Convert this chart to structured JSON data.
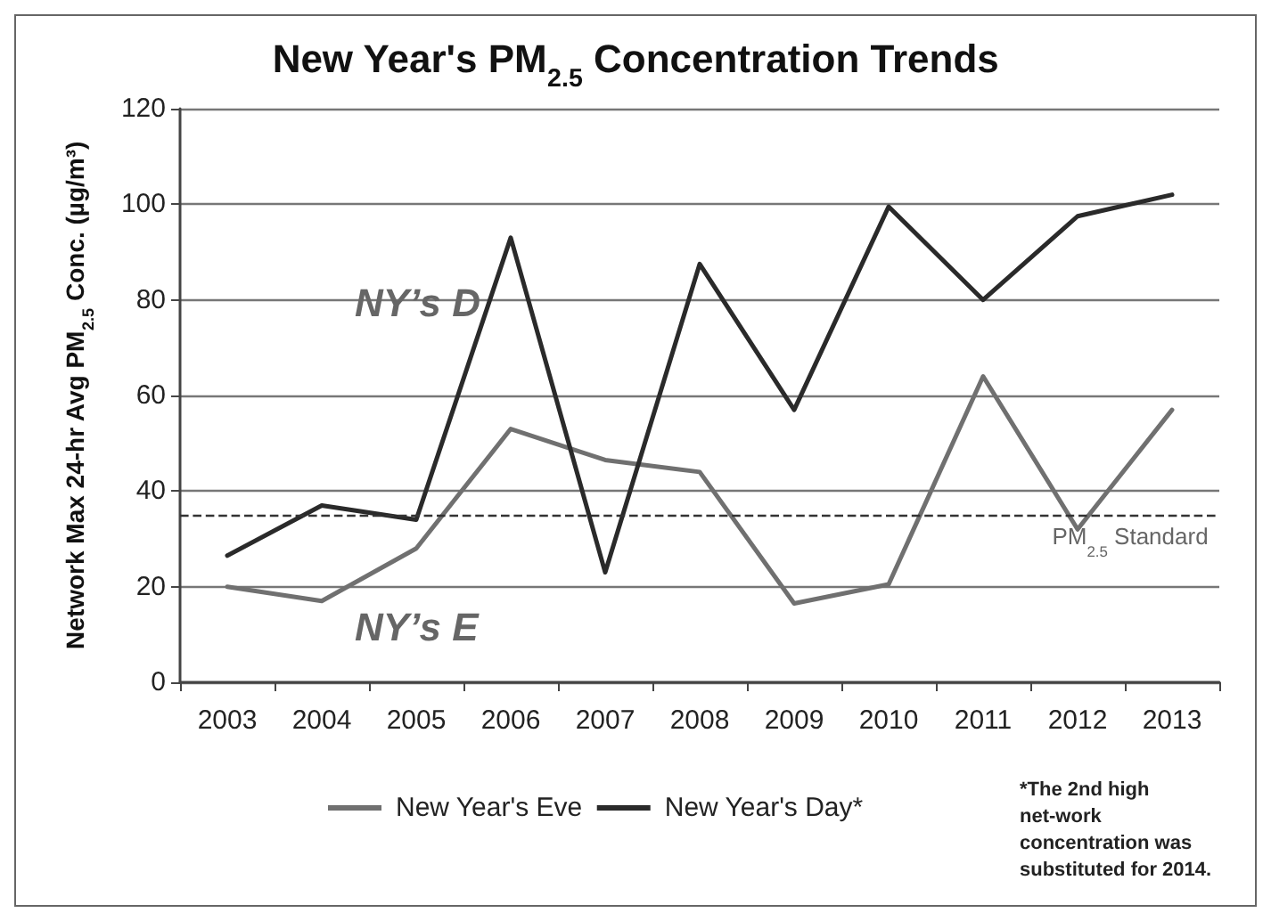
{
  "chart_data": {
    "type": "line",
    "title": "New Year's PM$_{2.5}$ Concentration Trends",
    "ylabel": "Network Max 24-hr Avg PM$_{2.5}$ Conc. (µg/m³)",
    "categories": [
      "2003",
      "2004",
      "2005",
      "2006",
      "2007",
      "2008",
      "2009",
      "2010",
      "2011",
      "2012",
      "2013"
    ],
    "series": [
      {
        "name": "New Year's Eve",
        "color": "#707070",
        "values": [
          20,
          17,
          28,
          53,
          46.5,
          44,
          16.5,
          20.5,
          64,
          32,
          57
        ]
      },
      {
        "name": "New Year's Day*",
        "color": "#2a2a2a",
        "values": [
          26.5,
          37,
          34,
          93,
          23,
          87.5,
          57,
          99.5,
          80,
          97.5,
          102
        ]
      }
    ],
    "ylim": [
      0,
      120
    ],
    "yticks": [
      0,
      20,
      40,
      60,
      80,
      100,
      120
    ],
    "grid": "y",
    "legend": "bottom",
    "marker": "none",
    "line_style": "solid",
    "ref_lines": [
      {
        "axis": "y",
        "value": 35,
        "label": "PM$_{2.5}$ Standard",
        "color": "#333333",
        "line_style": "dashed"
      }
    ],
    "annotations": [
      "NY’s D",
      "NY’s E",
      "*The 2nd high net-work concentration was substituted for 2014."
    ]
  }
}
